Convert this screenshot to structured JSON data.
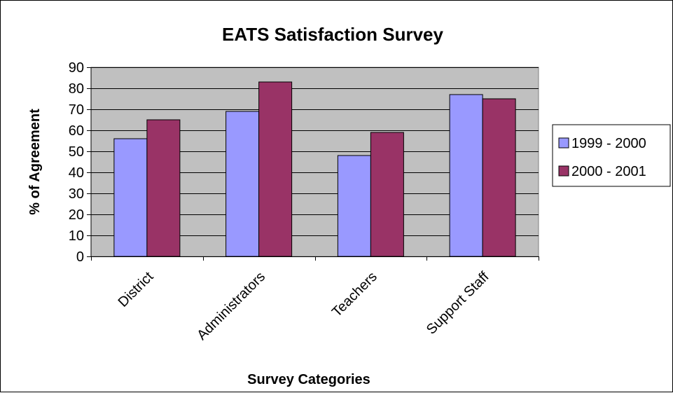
{
  "chart_data": {
    "type": "bar",
    "title": "EATS Satisfaction Survey",
    "xlabel": "Survey Categories",
    "ylabel": "% of Agreement",
    "categories": [
      "District",
      "Administrators",
      "Teachers",
      "Support Staff"
    ],
    "series": [
      {
        "name": "1999 - 2000",
        "values": [
          56,
          69,
          48,
          77
        ]
      },
      {
        "name": "2000 - 2001",
        "values": [
          65,
          83,
          59,
          75
        ]
      }
    ],
    "ylim": [
      0,
      90
    ],
    "yticks": [
      0,
      10,
      20,
      30,
      40,
      50,
      60,
      70,
      80,
      90
    ],
    "grid": true,
    "legend_position": "right",
    "colors": {
      "series": [
        "#9999ff",
        "#993366"
      ],
      "plot_background": "#c0c0c0",
      "gridline": "#000000"
    }
  }
}
